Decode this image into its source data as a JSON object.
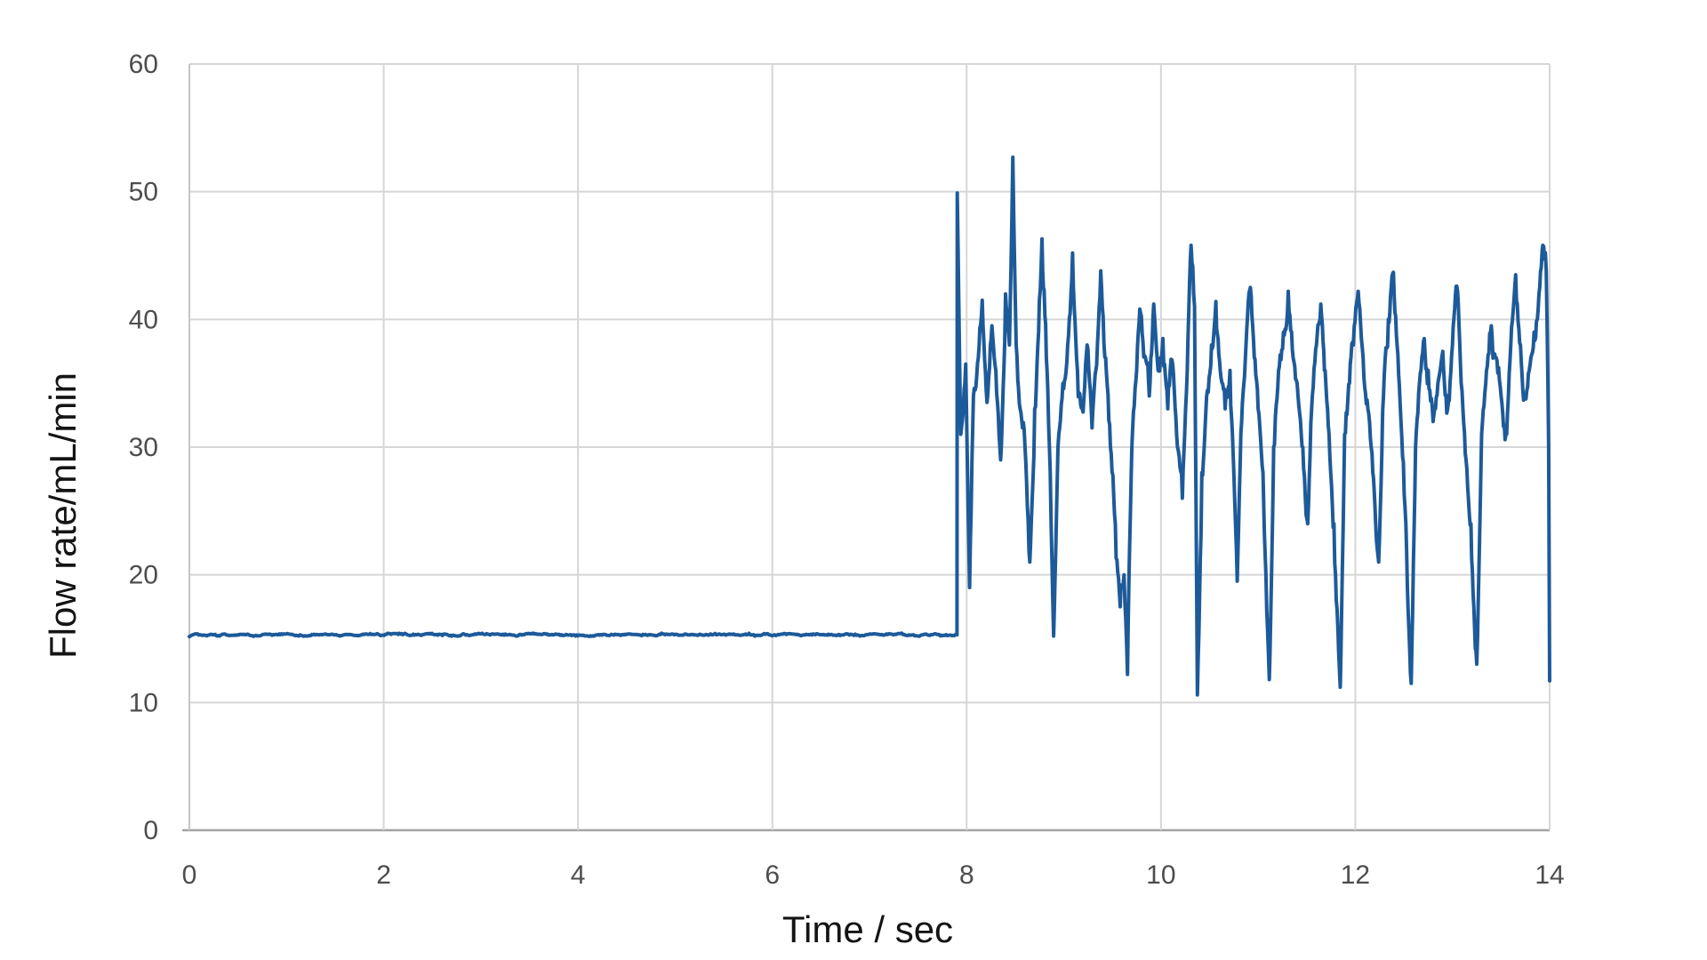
{
  "page": {
    "background": "#ffffff"
  },
  "chart_data": {
    "type": "line",
    "title": "",
    "xlabel": "Time / sec",
    "ylabel": "Flow rate/mL/min",
    "xlim": [
      0,
      14
    ],
    "ylim": [
      0,
      60
    ],
    "x_ticks": [
      0,
      2,
      4,
      6,
      8,
      10,
      12,
      14
    ],
    "y_ticks": [
      0,
      10,
      20,
      30,
      40,
      50,
      60
    ],
    "grid": true,
    "legend": false,
    "styles": {
      "line_color": "#1d5a99",
      "line_width": 4,
      "gridline_color": "#d6d6d6",
      "left_axis_color": "#c6c6c6",
      "bottom_axis_color": "#a3a3a3",
      "tick_label_color": "#4d4d4d",
      "title_color": "#141414",
      "background": "#ffffff"
    },
    "noise_seed": 7,
    "series": [
      {
        "name": "Flow rate",
        "description": "Steady baseline ~15.3 mL/min from 0 to 7.9 s, then pulsatile oscillation (mean ~34, peaks 40-53, dips 10.5-24) from 7.9 to 14 s",
        "segments": [
          {
            "kind": "flat",
            "t0": 0,
            "t1": 7.9,
            "value": 15.3,
            "dt": 0.012,
            "noise_slow": 0.12,
            "noise_fast": 0.07,
            "slow_dt": 0.06
          },
          {
            "kind": "anchors",
            "dt": 0.008,
            "noise_slow": 1.8,
            "noise_fast": 0.7,
            "slow_dt": 0.04,
            "anchors": [
              [
                7.9,
                15.3
              ],
              [
                7.903,
                49.9
              ],
              [
                7.94,
                31.0
              ],
              [
                7.99,
                36.5
              ],
              [
                8.03,
                19.0
              ],
              [
                8.07,
                34.0
              ],
              [
                8.12,
                37.0
              ],
              [
                8.16,
                41.5
              ],
              [
                8.21,
                33.5
              ],
              [
                8.26,
                39.5
              ],
              [
                8.3,
                36.0
              ],
              [
                8.35,
                29.0
              ],
              [
                8.4,
                42.0
              ],
              [
                8.44,
                38.0
              ],
              [
                8.475,
                52.7
              ],
              [
                8.51,
                38.0
              ],
              [
                8.55,
                33.0
              ],
              [
                8.6,
                30.0
              ],
              [
                8.65,
                21.0
              ],
              [
                8.7,
                33.0
              ],
              [
                8.74,
                39.0
              ],
              [
                8.775,
                46.3
              ],
              [
                8.82,
                37.0
              ],
              [
                8.86,
                28.0
              ],
              [
                8.895,
                15.2
              ],
              [
                8.94,
                30.0
              ],
              [
                8.99,
                35.0
              ],
              [
                9.04,
                38.0
              ],
              [
                9.09,
                45.2
              ],
              [
                9.14,
                36.0
              ],
              [
                9.19,
                33.0
              ],
              [
                9.24,
                38.0
              ],
              [
                9.29,
                31.5
              ],
              [
                9.33,
                36.0
              ],
              [
                9.38,
                43.8
              ],
              [
                9.43,
                37.0
              ],
              [
                9.48,
                30.0
              ],
              [
                9.53,
                24.0
              ],
              [
                9.58,
                17.5
              ],
              [
                9.62,
                20.0
              ],
              [
                9.655,
                12.2
              ],
              [
                9.7,
                30.0
              ],
              [
                9.75,
                36.0
              ],
              [
                9.79,
                40.5
              ],
              [
                9.84,
                37.0
              ],
              [
                9.88,
                34.0
              ],
              [
                9.925,
                41.2
              ],
              [
                9.97,
                36.0
              ],
              [
                10.02,
                38.5
              ],
              [
                10.07,
                33.0
              ],
              [
                10.12,
                36.5
              ],
              [
                10.17,
                30.0
              ],
              [
                10.22,
                26.0
              ],
              [
                10.27,
                36.0
              ],
              [
                10.31,
                45.8
              ],
              [
                10.345,
                41.0
              ],
              [
                10.375,
                10.6
              ],
              [
                10.42,
                28.0
              ],
              [
                10.47,
                34.0
              ],
              [
                10.52,
                38.0
              ],
              [
                10.565,
                41.4
              ],
              [
                10.61,
                36.0
              ],
              [
                10.66,
                33.0
              ],
              [
                10.71,
                36.0
              ],
              [
                10.75,
                28.0
              ],
              [
                10.785,
                19.5
              ],
              [
                10.83,
                32.0
              ],
              [
                10.875,
                38.0
              ],
              [
                10.92,
                42.5
              ],
              [
                10.96,
                37.0
              ],
              [
                11.0,
                33.0
              ],
              [
                11.05,
                28.0
              ],
              [
                11.08,
                20.0
              ],
              [
                11.115,
                11.8
              ],
              [
                11.16,
                30.0
              ],
              [
                11.21,
                36.0
              ],
              [
                11.26,
                39.0
              ],
              [
                11.31,
                42.2
              ],
              [
                11.36,
                37.0
              ],
              [
                11.41,
                34.0
              ],
              [
                11.46,
                30.0
              ],
              [
                11.51,
                24.0
              ],
              [
                11.55,
                33.0
              ],
              [
                11.6,
                38.0
              ],
              [
                11.645,
                41.2
              ],
              [
                11.69,
                36.0
              ],
              [
                11.73,
                31.0
              ],
              [
                11.78,
                24.0
              ],
              [
                11.845,
                11.2
              ],
              [
                11.89,
                31.0
              ],
              [
                11.94,
                35.0
              ],
              [
                11.98,
                38.0
              ],
              [
                12.03,
                42.2
              ],
              [
                12.08,
                37.0
              ],
              [
                12.13,
                33.0
              ],
              [
                12.18,
                28.0
              ],
              [
                12.24,
                21.0
              ],
              [
                12.29,
                34.0
              ],
              [
                12.34,
                40.0
              ],
              [
                12.385,
                43.6
              ],
              [
                12.43,
                38.0
              ],
              [
                12.47,
                32.0
              ],
              [
                12.52,
                24.0
              ],
              [
                12.575,
                11.5
              ],
              [
                12.62,
                30.0
              ],
              [
                12.66,
                35.0
              ],
              [
                12.71,
                38.5
              ],
              [
                12.75,
                36.0
              ],
              [
                12.8,
                32.0
              ],
              [
                12.85,
                35.0
              ],
              [
                12.9,
                37.5
              ],
              [
                12.95,
                33.0
              ],
              [
                13.0,
                38.0
              ],
              [
                13.045,
                42.6
              ],
              [
                13.09,
                35.0
              ],
              [
                13.14,
                29.0
              ],
              [
                13.19,
                24.0
              ],
              [
                13.25,
                13.0
              ],
              [
                13.3,
                31.0
              ],
              [
                13.35,
                36.0
              ],
              [
                13.4,
                39.5
              ],
              [
                13.45,
                37.0
              ],
              [
                13.5,
                34.0
              ],
              [
                13.55,
                31.0
              ],
              [
                13.6,
                38.0
              ],
              [
                13.65,
                43.5
              ],
              [
                13.7,
                38.0
              ],
              [
                13.74,
                34.0
              ],
              [
                13.79,
                36.0
              ],
              [
                13.84,
                39.0
              ],
              [
                13.89,
                42.0
              ],
              [
                13.93,
                45.8
              ],
              [
                13.965,
                43.8
              ],
              [
                13.99,
                30.0
              ],
              [
                14.0,
                11.7
              ]
            ]
          }
        ]
      }
    ]
  }
}
